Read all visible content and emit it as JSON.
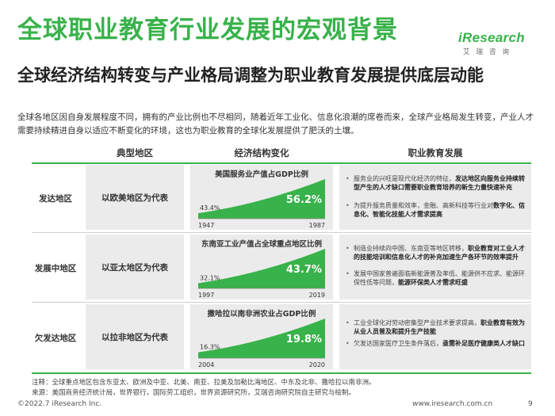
{
  "title": "全球职业教育行业发展的宏观背景",
  "subtitle": "全球经济结构转变与产业格局调整为职业教育发展提供底层动能",
  "intro": "全球各地区因自身发展程度不同，拥有的产业比例也不尽相同，随着近年工业化、信息化浪潮的席卷而来，全球产业格局发生转变，产业人才需要持续精进自身以适应不断变化的环境，这也为职业教育的全球化发展提供了肥沃的土壤。",
  "logo": {
    "main": "iResearch",
    "sub": "艾瑞咨询"
  },
  "headers": {
    "region": "典型地区",
    "economy": "经济结构变化",
    "education": "职业教育发展"
  },
  "colors": {
    "accent": "#38b24a",
    "box": "#ebebeb"
  },
  "rows": [
    {
      "region": "发达地区",
      "representative": "以欧美地区为代表",
      "chart_title": "美国服务业产值占GDP比例",
      "start_label": "43.4%",
      "end_label": "56.2%",
      "start_year": "1947",
      "end_year": "1987",
      "bullets": [
        {
          "plain": "服务业的兴旺是现代化经济的特征，",
          "bold": "发达地区向服务业持续转型产生的人才缺口需要职业教育培养的新生力量快速补充"
        },
        {
          "plain": "为提升服务质量和效率，金融、高新科技等行业对",
          "bold": "数字化、信息化、智能化技能人才需求提高"
        }
      ]
    },
    {
      "region": "发展中地区",
      "representative": "以亚太地区为代表",
      "chart_title": "东南亚工业产值占全球重点地区比例",
      "start_label": "32.1%",
      "end_label": "43.7%",
      "start_year": "1997",
      "end_year": "2019",
      "bullets": [
        {
          "plain": "制造业持续向中国、东南亚等地区转移，",
          "bold": "职业教育对工业人才的技能培训和信息化人才的补充加速生产各环节的效率提升"
        },
        {
          "plain": "发展中国家普遍面临新能源普及率低、能源供不应求、能源环保性低等问题，",
          "bold": "能源环保类人才需求旺盛"
        }
      ]
    },
    {
      "region": "欠发达地区",
      "representative": "以拉非地区为代表",
      "chart_title": "撒哈拉以南非洲农业占GDP比例",
      "start_label": "16.3%",
      "end_label": "19.8%",
      "start_year": "2004",
      "end_year": "2020",
      "bullets": [
        {
          "plain": "工业全球化对劳动密集型产业技术要求提高，",
          "bold": "职业教育有效为从业人员普及和提升生产技能"
        },
        {
          "plain": "欠发达国家医疗卫生条件落后，",
          "bold": "亟需补足医疗健康类人才缺口"
        }
      ]
    }
  ],
  "chart_data": [
    {
      "type": "area",
      "title": "美国服务业产值占GDP比例",
      "x": [
        "1947",
        "1987"
      ],
      "values": [
        43.4,
        56.2
      ],
      "unit": "%"
    },
    {
      "type": "area",
      "title": "东南亚工业产值占全球重点地区比例",
      "x": [
        "1997",
        "2019"
      ],
      "values": [
        32.1,
        43.7
      ],
      "unit": "%"
    },
    {
      "type": "area",
      "title": "撒哈拉以南非洲农业占GDP比例",
      "x": [
        "2004",
        "2020"
      ],
      "values": [
        16.3,
        19.8
      ],
      "unit": "%"
    }
  ],
  "notes": {
    "note": "注释：全球重点地区包含东亚太、欧洲及中亚、北美、南亚、拉美及加勒比海地区、中东及北非、撒哈拉以南非洲。",
    "source": "来源：美国商务经济统计局，世界银行，国际劳工组织，世界资源研究所，艾瑞咨询研究院自主研究与绘制。"
  },
  "footer": {
    "copyright": "©2022.7 iResearch Inc.",
    "url": "www.iresearch.com.cn",
    "page": "9"
  }
}
